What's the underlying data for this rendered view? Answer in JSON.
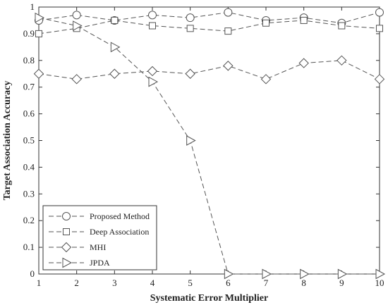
{
  "chart_data": {
    "type": "line",
    "xlabel": "Systematic Error Multiplier",
    "ylabel": "Target Association Accuracy",
    "xlim": [
      1,
      10
    ],
    "ylim": [
      0,
      1
    ],
    "xticks": [
      "1",
      "2",
      "3",
      "4",
      "5",
      "6",
      "7",
      "8",
      "9",
      "10"
    ],
    "yticks": [
      "0",
      "0.1",
      "0.2",
      "0.3",
      "0.4",
      "0.5",
      "0.6",
      "0.7",
      "0.8",
      "0.9",
      "1"
    ],
    "grid": false,
    "legend_position": "bottom-left",
    "x": [
      1,
      2,
      3,
      4,
      5,
      6,
      7,
      8,
      9,
      10
    ],
    "series": [
      {
        "name": "Proposed Method",
        "marker": "circle",
        "values": [
          0.95,
          0.97,
          0.95,
          0.97,
          0.96,
          0.98,
          0.95,
          0.96,
          0.94,
          0.98
        ]
      },
      {
        "name": "Deep Association",
        "marker": "square",
        "values": [
          0.9,
          0.92,
          0.95,
          0.93,
          0.92,
          0.91,
          0.94,
          0.95,
          0.93,
          0.92
        ]
      },
      {
        "name": "MHI",
        "marker": "diamond",
        "values": [
          0.75,
          0.73,
          0.75,
          0.76,
          0.75,
          0.78,
          0.73,
          0.79,
          0.8,
          0.73
        ]
      },
      {
        "name": "JPDA",
        "marker": "triangle-right",
        "values": [
          0.96,
          0.93,
          0.85,
          0.72,
          0.5,
          0.0,
          0.0,
          0.0,
          0.0,
          0.0
        ]
      }
    ],
    "colors": {
      "line": "#555555",
      "axis": "#333333"
    }
  }
}
